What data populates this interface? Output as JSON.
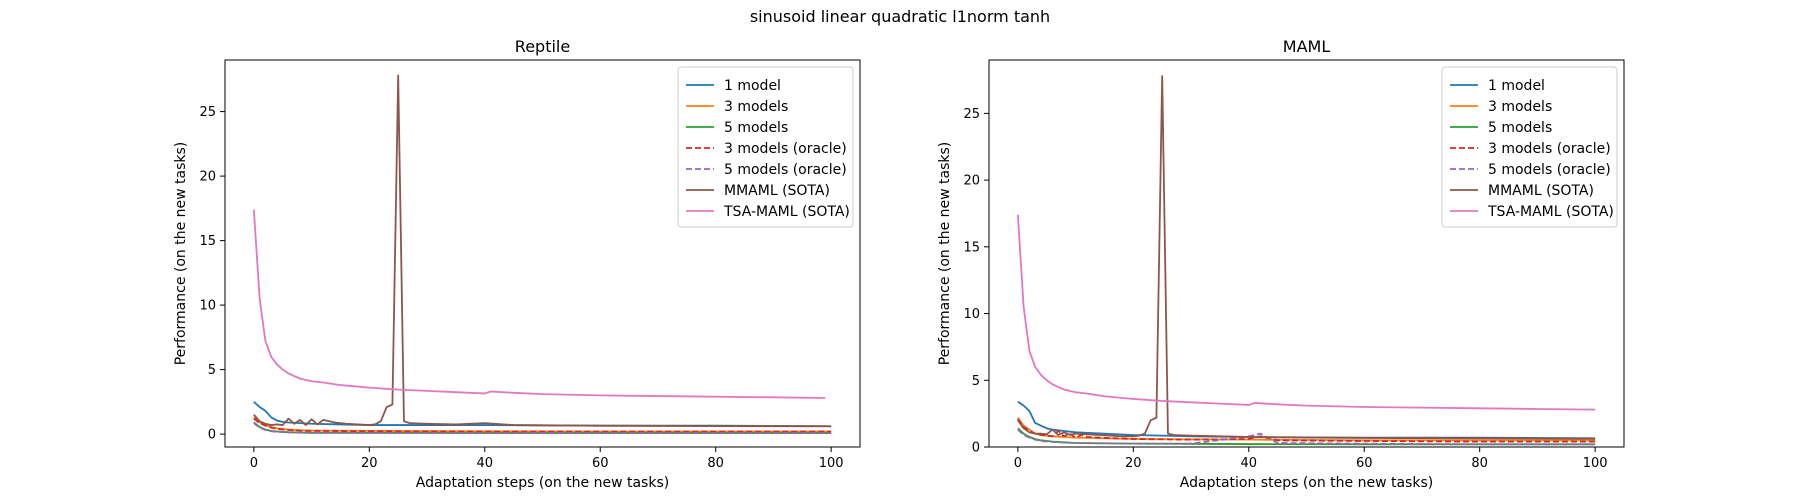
{
  "figure": {
    "suptitle": "sinusoid linear quadratic l1norm tanh"
  },
  "chart_data": [
    {
      "type": "line",
      "title": "Reptile",
      "xlabel": "Adaptation steps (on the new tasks)",
      "ylabel": "Performance (on the new tasks)",
      "xlim": [
        -5,
        105
      ],
      "ylim": [
        -1.0,
        29.0
      ],
      "xticks": [
        0,
        20,
        40,
        60,
        80,
        100
      ],
      "yticks": [
        0,
        5,
        10,
        15,
        20,
        25
      ],
      "grid": false,
      "legend_position": "top-right",
      "series": [
        {
          "name": "1 model",
          "color": "#1f77b4",
          "dash": "solid",
          "x": [
            0,
            1,
            2,
            3,
            4,
            5,
            6,
            8,
            10,
            15,
            20,
            30,
            40,
            60,
            80,
            100
          ],
          "y": [
            2.5,
            2.1,
            1.8,
            1.3,
            1.05,
            0.95,
            0.9,
            0.85,
            0.8,
            0.75,
            0.7,
            0.7,
            0.7,
            0.65,
            0.65,
            0.62
          ]
        },
        {
          "name": "3 models",
          "color": "#ff7f0e",
          "dash": "solid",
          "x": [
            0,
            1,
            2,
            3,
            4,
            6,
            8,
            10,
            20,
            40,
            60,
            80,
            100
          ],
          "y": [
            1.3,
            0.9,
            0.7,
            0.55,
            0.45,
            0.35,
            0.3,
            0.28,
            0.25,
            0.22,
            0.2,
            0.2,
            0.2
          ]
        },
        {
          "name": "5 models",
          "color": "#2ca02c",
          "dash": "solid",
          "x": [
            0,
            1,
            2,
            3,
            4,
            6,
            8,
            10,
            20,
            40,
            60,
            80,
            100
          ],
          "y": [
            0.9,
            0.55,
            0.35,
            0.25,
            0.2,
            0.15,
            0.12,
            0.1,
            0.1,
            0.08,
            0.08,
            0.08,
            0.08
          ]
        },
        {
          "name": "3 models (oracle)",
          "color": "#d62728",
          "dash": "dashed",
          "x": [
            0,
            1,
            2,
            3,
            4,
            6,
            8,
            10,
            20,
            40,
            60,
            80,
            100
          ],
          "y": [
            1.2,
            0.85,
            0.65,
            0.5,
            0.4,
            0.32,
            0.28,
            0.25,
            0.22,
            0.2,
            0.2,
            0.2,
            0.2
          ]
        },
        {
          "name": "5 models (oracle)",
          "color": "#9467bd",
          "dash": "dashed",
          "x": [
            0,
            1,
            2,
            3,
            4,
            6,
            8,
            10,
            20,
            40,
            60,
            80,
            100
          ],
          "y": [
            0.85,
            0.5,
            0.32,
            0.22,
            0.18,
            0.13,
            0.11,
            0.1,
            0.09,
            0.08,
            0.08,
            0.08,
            0.08
          ]
        },
        {
          "name": "MMAML (SOTA)",
          "color": "#8c564b",
          "dash": "solid",
          "x": [
            0,
            1,
            2,
            3,
            4,
            5,
            6,
            7,
            8,
            9,
            10,
            11,
            12,
            14,
            16,
            18,
            20,
            21,
            22,
            23,
            24,
            25,
            26,
            27,
            30,
            35,
            40,
            45,
            50,
            60,
            80,
            100
          ],
          "y": [
            1.5,
            1.0,
            0.8,
            0.7,
            0.75,
            0.7,
            1.2,
            0.8,
            1.1,
            0.7,
            1.15,
            0.75,
            1.1,
            0.9,
            0.8,
            0.75,
            0.7,
            0.75,
            1.0,
            2.1,
            2.3,
            27.8,
            1.0,
            0.85,
            0.8,
            0.75,
            0.85,
            0.7,
            0.68,
            0.65,
            0.62,
            0.6
          ]
        },
        {
          "name": "TSA-MAML (SOTA)",
          "color": "#e377c2",
          "dash": "solid",
          "x": [
            0,
            1,
            2,
            3,
            4,
            5,
            6,
            7,
            8,
            10,
            12,
            15,
            20,
            25,
            30,
            35,
            40,
            41,
            45,
            50,
            60,
            70,
            80,
            90,
            99
          ],
          "y": [
            17.4,
            10.5,
            7.2,
            6.0,
            5.4,
            5.0,
            4.7,
            4.5,
            4.3,
            4.1,
            4.0,
            3.8,
            3.6,
            3.45,
            3.35,
            3.25,
            3.15,
            3.3,
            3.2,
            3.1,
            3.0,
            2.95,
            2.9,
            2.85,
            2.8
          ]
        }
      ]
    },
    {
      "type": "line",
      "title": "MAML",
      "xlabel": "Adaptation steps (on the new tasks)",
      "ylabel": "Performance (on the new tasks)",
      "xlim": [
        -5,
        105
      ],
      "ylim": [
        0,
        29.0
      ],
      "xticks": [
        0,
        20,
        40,
        60,
        80,
        100
      ],
      "yticks": [
        0,
        5,
        10,
        15,
        20,
        25
      ],
      "grid": false,
      "legend_position": "top-right",
      "series": [
        {
          "name": "1 model",
          "color": "#1f77b4",
          "dash": "solid",
          "x": [
            0,
            1,
            2,
            3,
            4,
            5,
            6,
            8,
            10,
            15,
            20,
            25,
            30,
            40,
            60,
            80,
            100
          ],
          "y": [
            3.4,
            3.1,
            2.7,
            1.8,
            1.6,
            1.4,
            1.3,
            1.2,
            1.1,
            1.0,
            0.9,
            0.85,
            0.8,
            0.75,
            0.7,
            0.7,
            0.65
          ]
        },
        {
          "name": "3 models",
          "color": "#ff7f0e",
          "dash": "solid",
          "x": [
            0,
            1,
            2,
            3,
            4,
            6,
            8,
            10,
            20,
            40,
            60,
            80,
            100
          ],
          "y": [
            2.2,
            1.6,
            1.3,
            1.0,
            0.9,
            0.8,
            0.75,
            0.7,
            0.6,
            0.55,
            0.5,
            0.5,
            0.5
          ]
        },
        {
          "name": "5 models",
          "color": "#2ca02c",
          "dash": "solid",
          "x": [
            0,
            1,
            2,
            3,
            4,
            6,
            8,
            10,
            20,
            40,
            60,
            80,
            100
          ],
          "y": [
            1.4,
            1.0,
            0.75,
            0.6,
            0.5,
            0.4,
            0.35,
            0.3,
            0.25,
            0.22,
            0.2,
            0.2,
            0.2
          ]
        },
        {
          "name": "3 models (oracle)",
          "color": "#d62728",
          "dash": "dashed",
          "x": [
            0,
            1,
            2,
            3,
            4,
            6,
            7,
            8,
            9,
            10,
            11,
            12,
            14,
            20,
            30,
            40,
            42,
            45,
            60,
            80,
            100
          ],
          "y": [
            2.1,
            1.5,
            1.2,
            1.0,
            0.9,
            0.8,
            1.2,
            0.8,
            1.0,
            0.7,
            0.9,
            0.75,
            0.7,
            0.6,
            0.55,
            0.6,
            0.8,
            0.5,
            0.45,
            0.4,
            0.4
          ]
        },
        {
          "name": "5 models (oracle)",
          "color": "#9467bd",
          "dash": "dashed",
          "x": [
            0,
            1,
            2,
            3,
            4,
            6,
            8,
            10,
            20,
            30,
            40,
            42,
            45,
            60,
            80,
            100
          ],
          "y": [
            1.3,
            0.9,
            0.7,
            0.55,
            0.45,
            0.38,
            0.33,
            0.3,
            0.25,
            0.25,
            0.8,
            1.0,
            0.3,
            0.25,
            0.2,
            0.2
          ]
        },
        {
          "name": "MMAML (SOTA)",
          "color": "#8c564b",
          "dash": "solid",
          "x": [
            0,
            1,
            2,
            3,
            4,
            5,
            6,
            7,
            8,
            9,
            10,
            12,
            14,
            16,
            18,
            20,
            21,
            22,
            23,
            24,
            25,
            26,
            27,
            30,
            35,
            40,
            45,
            50,
            60,
            80,
            100
          ],
          "y": [
            2.0,
            1.4,
            1.1,
            1.0,
            1.0,
            0.95,
            1.3,
            0.9,
            1.1,
            0.9,
            1.0,
            0.95,
            0.9,
            0.85,
            0.8,
            0.8,
            0.85,
            1.0,
            2.0,
            2.2,
            27.8,
            1.0,
            0.9,
            0.85,
            0.8,
            0.75,
            0.72,
            0.7,
            0.68,
            0.65,
            0.62
          ]
        },
        {
          "name": "TSA-MAML (SOTA)",
          "color": "#e377c2",
          "dash": "solid",
          "x": [
            0,
            1,
            2,
            3,
            4,
            5,
            6,
            7,
            8,
            10,
            12,
            15,
            20,
            25,
            30,
            35,
            40,
            41,
            45,
            50,
            60,
            70,
            80,
            90,
            100
          ],
          "y": [
            17.4,
            10.5,
            7.2,
            6.0,
            5.4,
            5.0,
            4.7,
            4.5,
            4.3,
            4.1,
            4.0,
            3.8,
            3.6,
            3.45,
            3.35,
            3.25,
            3.15,
            3.3,
            3.2,
            3.1,
            3.0,
            2.95,
            2.9,
            2.85,
            2.8
          ]
        }
      ]
    }
  ]
}
